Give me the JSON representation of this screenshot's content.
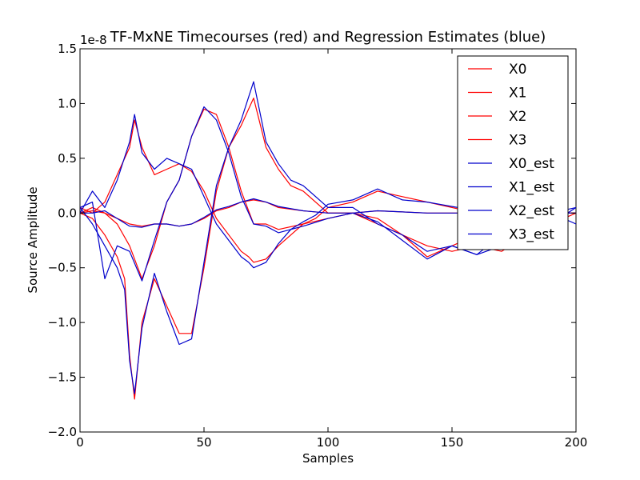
{
  "chart_data": {
    "type": "line",
    "title": "TF-MxNE Timecourses (red) and Regression Estimates (blue)",
    "xlabel": "Samples",
    "ylabel": "Source Amplitude",
    "offset_label": "1e-8",
    "xlim": [
      0,
      200
    ],
    "ylim": [
      -2.0,
      1.5
    ],
    "xticks": [
      0,
      50,
      100,
      150,
      200
    ],
    "yticks": [
      -2.0,
      -1.5,
      -1.0,
      -0.5,
      0.0,
      0.5,
      1.0,
      1.5
    ],
    "xtick_labels": [
      "0",
      "50",
      "100",
      "150",
      "200"
    ],
    "ytick_labels": [
      "−2.0",
      "−1.5",
      "−1.0",
      "−0.5",
      "0.0",
      "0.5",
      "1.0",
      "1.5"
    ],
    "grid": false,
    "legend_position": "top-right",
    "series": [
      {
        "name": "X0",
        "color": "#ff0000",
        "x": [
          0,
          5,
          10,
          15,
          20,
          22,
          25,
          30,
          35,
          40,
          45,
          50,
          55,
          60,
          65,
          68,
          70,
          75,
          80,
          85,
          90,
          95,
          100,
          110,
          120,
          130,
          140,
          150,
          160,
          170,
          180,
          190,
          200
        ],
        "y": [
          0.05,
          0.0,
          0.1,
          0.35,
          0.6,
          0.85,
          0.6,
          0.35,
          0.4,
          0.45,
          0.38,
          0.2,
          -0.05,
          -0.2,
          -0.35,
          -0.4,
          -0.45,
          -0.42,
          -0.3,
          -0.2,
          -0.1,
          -0.05,
          0.05,
          0.1,
          0.2,
          0.15,
          0.1,
          0.05,
          0.0,
          -0.05,
          0.0,
          0.0,
          0.0
        ]
      },
      {
        "name": "X1",
        "color": "#ff0000",
        "x": [
          0,
          5,
          10,
          15,
          18,
          20,
          22,
          25,
          30,
          35,
          40,
          45,
          50,
          55,
          60,
          65,
          70,
          75,
          80,
          85,
          90,
          100,
          110,
          120,
          130,
          140,
          150,
          160,
          170,
          180,
          190,
          200
        ],
        "y": [
          0.0,
          -0.05,
          -0.2,
          -0.4,
          -0.6,
          -1.3,
          -1.7,
          -1.0,
          -0.6,
          -0.85,
          -1.1,
          -1.1,
          -0.5,
          0.2,
          0.6,
          0.8,
          1.05,
          0.6,
          0.4,
          0.25,
          0.2,
          0.0,
          0.0,
          -0.1,
          -0.2,
          -0.3,
          -0.35,
          -0.3,
          -0.35,
          -0.2,
          -0.1,
          0.0
        ]
      },
      {
        "name": "X2",
        "color": "#ff0000",
        "x": [
          0,
          5,
          10,
          15,
          20,
          25,
          30,
          35,
          40,
          45,
          50,
          55,
          60,
          65,
          70,
          75,
          80,
          90,
          100,
          110,
          120,
          130,
          140,
          150,
          160,
          170,
          180,
          190,
          200
        ],
        "y": [
          0.0,
          0.05,
          0.0,
          -0.1,
          -0.3,
          -0.6,
          -0.3,
          0.1,
          0.3,
          0.7,
          0.95,
          0.9,
          0.6,
          0.2,
          -0.1,
          -0.1,
          -0.15,
          -0.1,
          -0.05,
          0.0,
          -0.05,
          -0.2,
          -0.4,
          -0.3,
          -0.2,
          -0.1,
          -0.05,
          0.0,
          0.0
        ]
      },
      {
        "name": "X3",
        "color": "#ff0000",
        "x": [
          0,
          5,
          10,
          15,
          20,
          25,
          30,
          35,
          40,
          45,
          50,
          55,
          60,
          65,
          70,
          75,
          80,
          90,
          100,
          110,
          120,
          130,
          140,
          150,
          160,
          170,
          180,
          190,
          200
        ],
        "y": [
          0.0,
          0.02,
          0.0,
          -0.05,
          -0.1,
          -0.12,
          -0.1,
          -0.1,
          -0.12,
          -0.1,
          -0.05,
          0.02,
          0.05,
          0.1,
          0.12,
          0.1,
          0.05,
          0.02,
          0.0,
          0.0,
          0.02,
          0.01,
          0.0,
          0.0,
          0.0,
          0.0,
          0.0,
          0.0,
          0.0
        ]
      },
      {
        "name": "X0_est",
        "color": "#0000cc",
        "x": [
          0,
          5,
          10,
          15,
          20,
          22,
          25,
          30,
          35,
          40,
          45,
          50,
          55,
          60,
          65,
          68,
          70,
          75,
          80,
          85,
          90,
          95,
          100,
          110,
          120,
          130,
          140,
          150,
          160,
          170,
          180,
          190,
          200
        ],
        "y": [
          0.0,
          0.2,
          0.05,
          0.3,
          0.65,
          0.9,
          0.55,
          0.4,
          0.5,
          0.45,
          0.4,
          0.15,
          -0.1,
          -0.25,
          -0.4,
          -0.45,
          -0.5,
          -0.45,
          -0.28,
          -0.15,
          -0.08,
          -0.02,
          0.08,
          0.12,
          0.22,
          0.12,
          0.1,
          0.06,
          0.02,
          -0.05,
          0.02,
          0.0,
          0.05
        ]
      },
      {
        "name": "X1_est",
        "color": "#0000cc",
        "x": [
          0,
          5,
          10,
          15,
          18,
          20,
          22,
          25,
          30,
          35,
          40,
          45,
          50,
          55,
          60,
          65,
          70,
          75,
          80,
          85,
          90,
          100,
          110,
          120,
          130,
          140,
          150,
          160,
          170,
          180,
          190,
          200
        ],
        "y": [
          0.05,
          -0.1,
          -0.3,
          -0.5,
          -0.7,
          -1.35,
          -1.65,
          -1.05,
          -0.55,
          -0.9,
          -1.2,
          -1.15,
          -0.45,
          0.25,
          0.6,
          0.85,
          1.2,
          0.65,
          0.45,
          0.3,
          0.25,
          0.05,
          0.05,
          -0.1,
          -0.2,
          -0.35,
          -0.3,
          -0.38,
          -0.3,
          -0.15,
          -0.1,
          0.05
        ]
      },
      {
        "name": "X2_est",
        "color": "#0000cc",
        "x": [
          0,
          5,
          10,
          15,
          20,
          25,
          30,
          35,
          40,
          45,
          50,
          55,
          60,
          65,
          70,
          75,
          80,
          90,
          100,
          110,
          120,
          130,
          140,
          150,
          160,
          170,
          180,
          190,
          200
        ],
        "y": [
          0.05,
          0.1,
          -0.6,
          -0.3,
          -0.35,
          -0.62,
          -0.25,
          0.1,
          0.3,
          0.7,
          0.97,
          0.85,
          0.55,
          0.15,
          -0.1,
          -0.12,
          -0.18,
          -0.12,
          -0.05,
          0.0,
          -0.08,
          -0.25,
          -0.42,
          -0.3,
          -0.38,
          -0.2,
          -0.1,
          0.0,
          -0.1
        ]
      },
      {
        "name": "X3_est",
        "color": "#0000cc",
        "x": [
          0,
          5,
          10,
          15,
          20,
          25,
          30,
          35,
          40,
          45,
          50,
          55,
          60,
          65,
          70,
          75,
          80,
          90,
          100,
          110,
          120,
          130,
          140,
          150,
          160,
          170,
          180,
          190,
          200
        ],
        "y": [
          0.0,
          0.0,
          0.02,
          -0.05,
          -0.12,
          -0.13,
          -0.1,
          -0.1,
          -0.12,
          -0.1,
          -0.04,
          0.03,
          0.06,
          0.1,
          0.13,
          0.1,
          0.06,
          0.02,
          0.0,
          0.0,
          0.02,
          0.01,
          0.0,
          0.0,
          0.0,
          0.0,
          0.0,
          0.0,
          0.0
        ]
      }
    ]
  }
}
